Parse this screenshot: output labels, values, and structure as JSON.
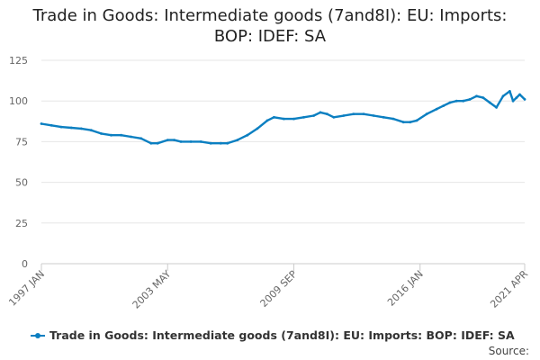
{
  "title_line1": "Trade in Goods: Intermediate goods (7and8I): EU: Imports:",
  "title_line2": "BOP: IDEF: SA",
  "source_label": "Source:",
  "chart_data": {
    "type": "line",
    "title": "Trade in Goods: Intermediate goods (7and8I): EU: Imports: BOP: IDEF: SA",
    "xlabel": "",
    "ylabel": "",
    "ylim": [
      0,
      125
    ],
    "y_ticks": [
      0,
      25,
      50,
      75,
      100,
      125
    ],
    "x_tick_labels": [
      "1997 JAN",
      "2003 MAY",
      "2009 SEP",
      "2016 JAN",
      "2021 APR"
    ],
    "x_tick_months": [
      0,
      76,
      152,
      228,
      291
    ],
    "grid": true,
    "legend_position": "bottom",
    "series": [
      {
        "name": "Trade in Goods: Intermediate goods (7and8I): EU: Imports: BOP: IDEF: SA",
        "color": "#0b7fc1",
        "points": [
          [
            0,
            86
          ],
          [
            6,
            85
          ],
          [
            12,
            84
          ],
          [
            18,
            83.5
          ],
          [
            24,
            83
          ],
          [
            30,
            82
          ],
          [
            36,
            80
          ],
          [
            42,
            79
          ],
          [
            48,
            79
          ],
          [
            54,
            78
          ],
          [
            60,
            77
          ],
          [
            66,
            74
          ],
          [
            70,
            74
          ],
          [
            76,
            76
          ],
          [
            80,
            76
          ],
          [
            84,
            75
          ],
          [
            90,
            75
          ],
          [
            96,
            75
          ],
          [
            102,
            74
          ],
          [
            108,
            74
          ],
          [
            112,
            74
          ],
          [
            118,
            76
          ],
          [
            124,
            79
          ],
          [
            130,
            83
          ],
          [
            136,
            88
          ],
          [
            140,
            90
          ],
          [
            146,
            89
          ],
          [
            152,
            89
          ],
          [
            158,
            90
          ],
          [
            164,
            91
          ],
          [
            168,
            93
          ],
          [
            172,
            92
          ],
          [
            176,
            90
          ],
          [
            182,
            91
          ],
          [
            188,
            92
          ],
          [
            194,
            92
          ],
          [
            200,
            91
          ],
          [
            206,
            90
          ],
          [
            212,
            89
          ],
          [
            218,
            87
          ],
          [
            222,
            87
          ],
          [
            226,
            88
          ],
          [
            232,
            92
          ],
          [
            238,
            95
          ],
          [
            242,
            97
          ],
          [
            246,
            99
          ],
          [
            250,
            100
          ],
          [
            254,
            100
          ],
          [
            258,
            101
          ],
          [
            262,
            103
          ],
          [
            266,
            102
          ],
          [
            270,
            99
          ],
          [
            274,
            96
          ],
          [
            278,
            103
          ],
          [
            282,
            106
          ],
          [
            284,
            100
          ],
          [
            286,
            102
          ],
          [
            288,
            104
          ],
          [
            291,
            101
          ]
        ]
      }
    ]
  }
}
